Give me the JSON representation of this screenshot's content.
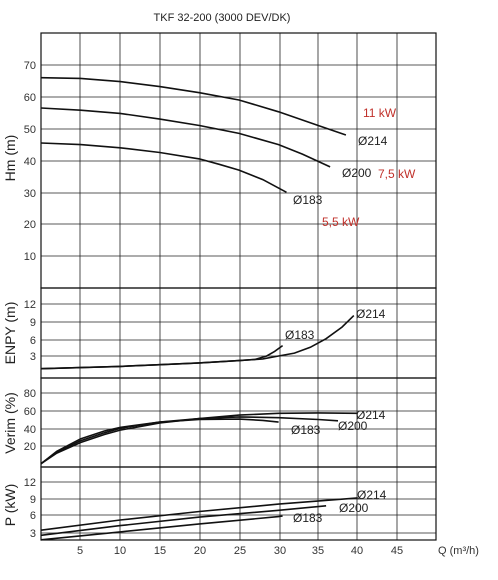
{
  "chart_data": {
    "type": "line",
    "title": "TKF 32-200 (3000 DEV/DK)",
    "xlabel": "Q (m³/h)",
    "xlim": [
      0,
      50
    ],
    "x_ticks": [
      "5",
      "10",
      "15",
      "20",
      "25",
      "30",
      "35",
      "40",
      "45"
    ],
    "panels": [
      {
        "id": "head",
        "ylabel": "Hm (m)",
        "ylim": [
          0,
          75
        ],
        "y_ticks": [
          "10",
          "20",
          "30",
          "40",
          "50",
          "60",
          "70"
        ],
        "series": [
          {
            "name": "Ø214",
            "x": [
              0,
              5,
              10,
              15,
              20,
              25,
              30,
              35,
              38.5
            ],
            "y": [
              66,
              65.8,
              64.8,
              63.2,
              61.3,
              59,
              55.3,
              51,
              48
            ]
          },
          {
            "name": "Ø200",
            "x": [
              0,
              5,
              10,
              15,
              20,
              25,
              30,
              33,
              36.5
            ],
            "y": [
              56.5,
              55.8,
              54.8,
              53,
              51,
              48.5,
              45,
              42,
              38
            ]
          },
          {
            "name": "Ø183",
            "x": [
              0,
              5,
              10,
              15,
              20,
              22.5,
              25,
              28,
              31
            ],
            "y": [
              45.5,
              45,
              44,
              42.5,
              40.5,
              38.8,
              37,
              34,
              30
            ]
          }
        ],
        "power_labels": [
          "11 kW",
          "7,5 kW",
          "5,5 kW"
        ]
      },
      {
        "id": "npsh",
        "ylabel": "ENPY (m)",
        "ylim": [
          0,
          15
        ],
        "y_ticks": [
          "3",
          "6",
          "9",
          "12"
        ],
        "series": [
          {
            "name": "Ø214",
            "x": [
              0,
              5,
              10,
              15,
              20,
              25,
              28,
              30,
              32,
              34,
              36,
              38,
              39.5
            ],
            "y": [
              0.8,
              1,
              1.2,
              1.5,
              1.8,
              2.2,
              2.5,
              3,
              3.5,
              4.5,
              6,
              8,
              10
            ]
          },
          {
            "name": "Ø183",
            "x": [
              0,
              5,
              10,
              15,
              20,
              25,
              27,
              28.5,
              29.5,
              30.5
            ],
            "y": [
              0.8,
              1,
              1.2,
              1.5,
              1.8,
              2.2,
              2.4,
              3,
              3.8,
              4.8
            ]
          }
        ]
      },
      {
        "id": "efficiency",
        "ylabel": "Verim (%)",
        "ylim": [
          0,
          100
        ],
        "y_ticks": [
          "20",
          "40",
          "60",
          "80"
        ],
        "series": [
          {
            "name": "Ø214",
            "x": [
              0,
              2,
              5,
              8,
              10,
              15,
              20,
              25,
              30,
              35,
              40
            ],
            "y": [
              0,
              12,
              24,
              33,
              38,
              46,
              51,
              55,
              57,
              57.5,
              57
            ]
          },
          {
            "name": "Ø200",
            "x": [
              0,
              2,
              5,
              8,
              10,
              15,
              20,
              25,
              30,
              35,
              37.5
            ],
            "y": [
              0,
              13,
              26,
              35,
              40,
              47,
              51,
              53,
              52,
              50,
              48.5
            ]
          },
          {
            "name": "Ø183",
            "x": [
              0,
              2,
              5,
              8,
              10,
              15,
              20,
              25,
              28,
              30
            ],
            "y": [
              0,
              14,
              28,
              37,
              41,
              47,
              50,
              50.5,
              49,
              47
            ]
          }
        ]
      },
      {
        "id": "power",
        "ylabel": "P (kW)",
        "ylim": [
          0,
          15
        ],
        "y_ticks": [
          "3",
          "6",
          "9",
          "12"
        ],
        "series": [
          {
            "name": "Ø214",
            "x": [
              0,
              10,
              20,
              30,
              40
            ],
            "y": [
              3.5,
              5.3,
              6.8,
              8.1,
              9.2
            ]
          },
          {
            "name": "Ø200",
            "x": [
              0,
              10,
              20,
              30,
              36
            ],
            "y": [
              2.6,
              4.3,
              5.8,
              7,
              7.8
            ]
          },
          {
            "name": "Ø183",
            "x": [
              0,
              10,
              20,
              30,
              30.5
            ],
            "y": [
              1.8,
              3.2,
              4.6,
              5.9,
              6
            ]
          }
        ]
      }
    ],
    "grid": true
  }
}
